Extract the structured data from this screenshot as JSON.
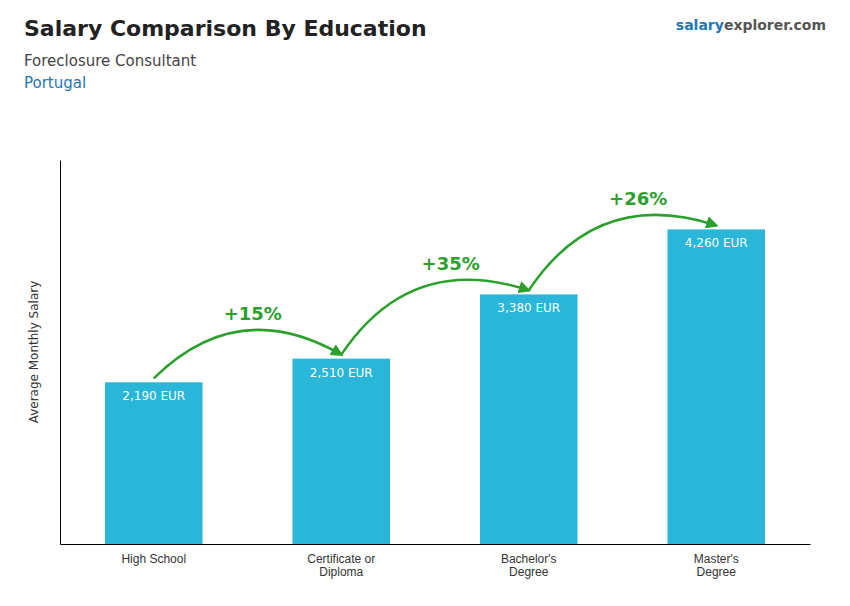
{
  "chart_data": {
    "type": "bar",
    "title": "Salary Comparison By Education",
    "subtitle": [
      "Foreclosure Consultant",
      "Portugal"
    ],
    "watermark": [
      "salary",
      "explorer.com"
    ],
    "ylabel": "Average Monthly Salary",
    "categories": [
      "High School",
      "Certificate or\nDiploma",
      "Bachelor's\nDegree",
      "Master's\nDegree"
    ],
    "values": [
      2190,
      2510,
      3380,
      4260
    ],
    "value_labels": [
      "2,190 EUR",
      "2,510 EUR",
      "3,380 EUR",
      "4,260 EUR"
    ],
    "data_labels": true,
    "annotations": [
      "+15%",
      "+35%",
      "+26%"
    ],
    "color": "#29b6d8",
    "ylim": [
      0,
      5200
    ],
    "grid": false,
    "tick_labels": "x"
  }
}
